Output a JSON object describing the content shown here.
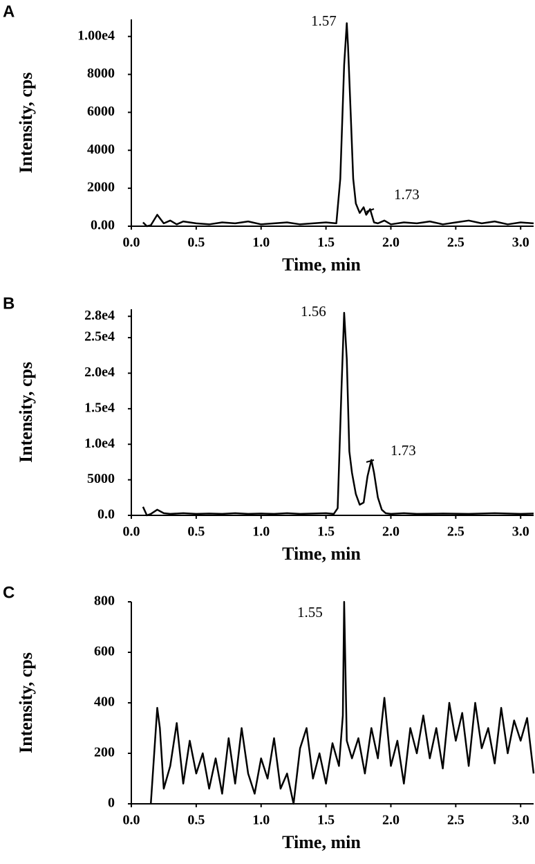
{
  "chart_data": [
    {
      "type": "line",
      "panel": "A",
      "xlabel": "Time, min",
      "ylabel": "Intensity, cps",
      "color": "#000000",
      "annotations": [
        "1.57",
        "1.73"
      ],
      "xlim": [
        0,
        3.1
      ],
      "xticks": [
        {
          "value": 0,
          "label": "0.0"
        },
        0.5,
        {
          "value": 1,
          "label": "1.0"
        },
        1.5,
        {
          "value": 2,
          "label": "2.0"
        },
        2.5,
        {
          "value": 3,
          "label": "3.0"
        }
      ],
      "ylim": [
        0,
        10900
      ],
      "yticks": [
        {
          "value": 0,
          "label": "0.00"
        },
        2000,
        4000,
        6000,
        8000,
        {
          "value": 10000,
          "label": "1.00e4"
        }
      ],
      "x": [
        0.09,
        0.12,
        0.15,
        0.2,
        0.25,
        0.3,
        0.35,
        0.4,
        0.5,
        0.6,
        0.7,
        0.8,
        0.9,
        1.0,
        1.1,
        1.2,
        1.3,
        1.4,
        1.5,
        1.58,
        1.61,
        1.64,
        1.66,
        1.67,
        1.69,
        1.71,
        1.73,
        1.76,
        1.79,
        1.81,
        1.84,
        1.87,
        1.9,
        1.95,
        2.0,
        2.1,
        2.2,
        2.3,
        2.4,
        2.5,
        2.6,
        2.7,
        2.8,
        2.9,
        3.0,
        3.1
      ],
      "values": [
        200,
        0,
        50,
        600,
        150,
        300,
        100,
        250,
        150,
        100,
        200,
        150,
        250,
        100,
        150,
        200,
        100,
        150,
        200,
        150,
        2500,
        8500,
        10700,
        9500,
        6000,
        2500,
        1200,
        700,
        1000,
        600,
        900,
        200,
        150,
        300,
        100,
        200,
        150,
        250,
        100,
        200,
        300,
        150,
        250,
        100,
        200,
        150
      ]
    },
    {
      "type": "line",
      "panel": "B",
      "xlabel": "Time, min",
      "ylabel": "Intensity, cps",
      "color": "#000000",
      "annotations": [
        "1.56",
        "1.73"
      ],
      "xlim": [
        0,
        3.1
      ],
      "xticks": [
        {
          "value": 0,
          "label": "0.0"
        },
        0.5,
        {
          "value": 1,
          "label": "1.0"
        },
        1.5,
        {
          "value": 2,
          "label": "2.0"
        },
        2.5,
        {
          "value": 3,
          "label": "3.0"
        }
      ],
      "ylim": [
        0,
        29000
      ],
      "yticks": [
        {
          "value": 0,
          "label": "0.0"
        },
        5000,
        {
          "value": 10000,
          "label": "1.0e4"
        },
        {
          "value": 15000,
          "label": "1.5e4"
        },
        {
          "value": 20000,
          "label": "2.0e4"
        },
        {
          "value": 25000,
          "label": "2.5e4"
        },
        {
          "value": 28000,
          "label": "2.8e4"
        }
      ],
      "x": [
        0.09,
        0.12,
        0.15,
        0.2,
        0.25,
        0.3,
        0.4,
        0.5,
        0.6,
        0.7,
        0.8,
        0.9,
        1.0,
        1.1,
        1.2,
        1.3,
        1.4,
        1.5,
        1.56,
        1.59,
        1.62,
        1.64,
        1.66,
        1.68,
        1.7,
        1.73,
        1.76,
        1.79,
        1.82,
        1.85,
        1.87,
        1.9,
        1.93,
        1.96,
        2.0,
        2.1,
        2.2,
        2.4,
        2.6,
        2.8,
        3.0,
        3.1
      ],
      "values": [
        1200,
        0,
        200,
        800,
        300,
        200,
        300,
        200,
        250,
        200,
        300,
        200,
        250,
        200,
        300,
        200,
        250,
        300,
        200,
        1000,
        18000,
        28500,
        22000,
        9000,
        6000,
        3000,
        1500,
        1800,
        5500,
        7800,
        6000,
        2500,
        800,
        300,
        200,
        300,
        200,
        250,
        200,
        300,
        200,
        250
      ]
    },
    {
      "type": "line",
      "panel": "C",
      "xlabel": "Time, min",
      "ylabel": "Intensity, cps",
      "color": "#000000",
      "annotations": [
        "1.55"
      ],
      "xlim": [
        0,
        3.1
      ],
      "xticks": [
        {
          "value": 0,
          "label": "0.0"
        },
        0.5,
        {
          "value": 1,
          "label": "1.0"
        },
        1.5,
        {
          "value": 2,
          "label": "2.0"
        },
        2.5,
        {
          "value": 3,
          "label": "3.0"
        }
      ],
      "ylim": [
        0,
        800
      ],
      "yticks": [
        0,
        200,
        400,
        600,
        800
      ],
      "x": [
        0.15,
        0.2,
        0.22,
        0.25,
        0.3,
        0.35,
        0.4,
        0.45,
        0.5,
        0.55,
        0.6,
        0.65,
        0.7,
        0.75,
        0.8,
        0.85,
        0.9,
        0.95,
        1.0,
        1.05,
        1.1,
        1.15,
        1.2,
        1.25,
        1.3,
        1.35,
        1.4,
        1.45,
        1.5,
        1.55,
        1.6,
        1.63,
        1.64,
        1.66,
        1.7,
        1.75,
        1.8,
        1.85,
        1.9,
        1.95,
        2.0,
        2.05,
        2.1,
        2.15,
        2.2,
        2.25,
        2.3,
        2.35,
        2.4,
        2.45,
        2.5,
        2.55,
        2.6,
        2.65,
        2.7,
        2.75,
        2.8,
        2.85,
        2.9,
        2.95,
        3.0,
        3.05,
        3.1
      ],
      "values": [
        0,
        380,
        300,
        60,
        150,
        320,
        80,
        250,
        120,
        200,
        60,
        180,
        40,
        260,
        80,
        300,
        120,
        40,
        180,
        100,
        260,
        60,
        120,
        0,
        220,
        300,
        100,
        200,
        80,
        240,
        150,
        350,
        800,
        250,
        180,
        260,
        120,
        300,
        180,
        420,
        150,
        250,
        80,
        300,
        200,
        350,
        180,
        300,
        140,
        400,
        250,
        360,
        150,
        400,
        220,
        300,
        160,
        380,
        200,
        330,
        250,
        340,
        120
      ]
    }
  ]
}
